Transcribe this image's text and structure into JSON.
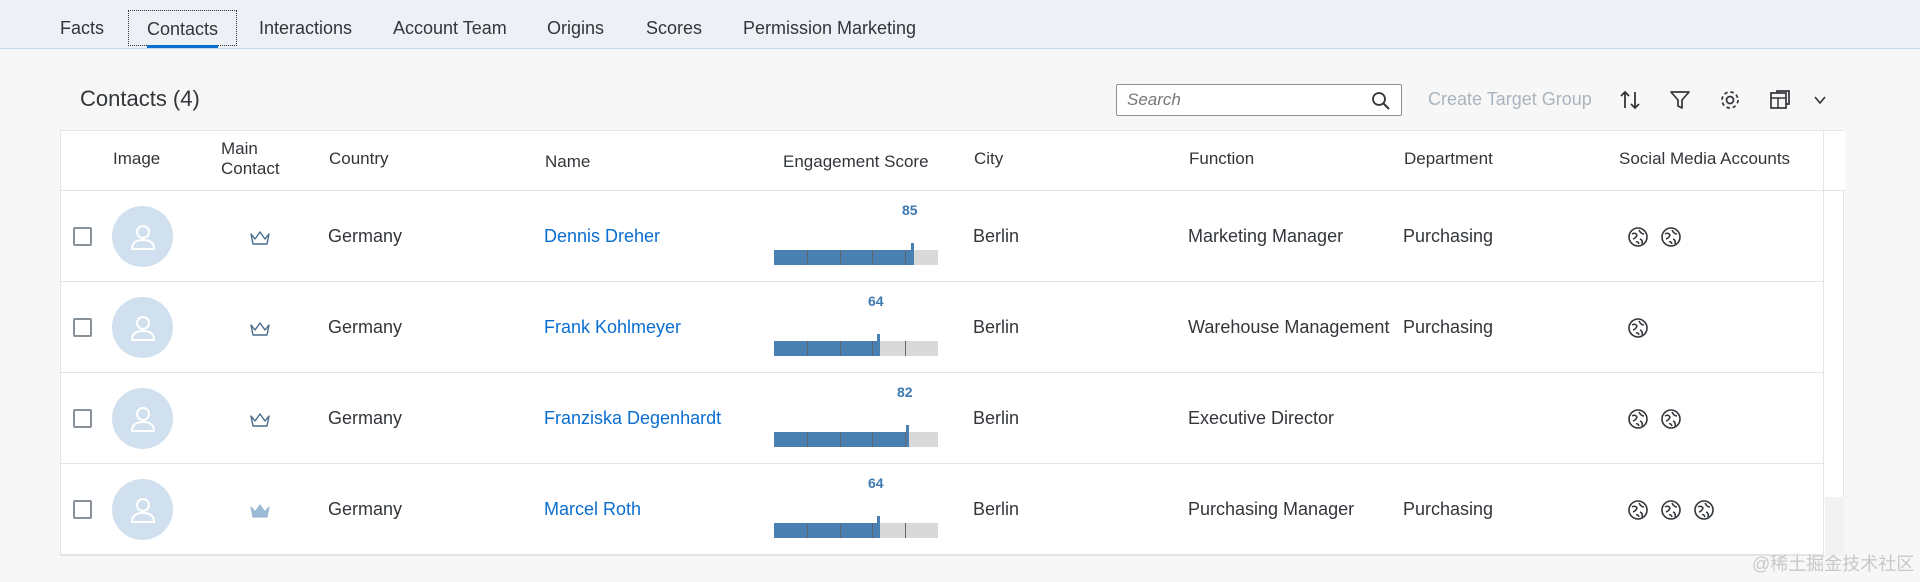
{
  "tabs": [
    {
      "label": "Facts"
    },
    {
      "label": "Contacts"
    },
    {
      "label": "Interactions"
    },
    {
      "label": "Account Team"
    },
    {
      "label": "Origins"
    },
    {
      "label": "Scores"
    },
    {
      "label": "Permission Marketing"
    }
  ],
  "active_tab": "Contacts",
  "section": {
    "title": "Contacts (4)"
  },
  "toolbar": {
    "search_placeholder": "Search",
    "create_target_group": "Create Target Group",
    "icons": [
      "sort-icon",
      "filter-icon",
      "settings-icon",
      "export-icon",
      "chevron-down-icon"
    ]
  },
  "table": {
    "columns": {
      "image": "Image",
      "main_contact_1": "Main",
      "main_contact_2": "Contact",
      "country": "Country",
      "name": "Name",
      "engagement": "Engagement Score",
      "city": "City",
      "function": "Function",
      "department": "Department",
      "social": "Social Media Accounts"
    },
    "rows": [
      {
        "main_contact": false,
        "country": "Germany",
        "name": "Dennis Dreher",
        "score": "85",
        "score_value": 85,
        "city": "Berlin",
        "function": "Marketing Manager",
        "department": "Purchasing",
        "social_count": 2
      },
      {
        "main_contact": false,
        "country": "Germany",
        "name": "Frank Kohlmeyer",
        "score": "64",
        "score_value": 64,
        "city": "Berlin",
        "function": "Warehouse Management",
        "department": "Purchasing",
        "social_count": 1
      },
      {
        "main_contact": false,
        "country": "Germany",
        "name": "Franziska Degenhardt",
        "score": "82",
        "score_value": 82,
        "city": "Berlin",
        "function": "Executive Director",
        "department": "",
        "social_count": 2
      },
      {
        "main_contact": true,
        "country": "Germany",
        "name": "Marcel Roth",
        "score": "64",
        "score_value": 64,
        "city": "Berlin",
        "function": "Purchasing Manager",
        "department": "Purchasing",
        "social_count": 3
      }
    ]
  },
  "watermark": "@稀土掘金技术社区",
  "colors": {
    "link": "#0a6ed1",
    "bar": "#4a7fb2",
    "score_label": "#3d78b0",
    "avatar": "#d1e0ee"
  }
}
